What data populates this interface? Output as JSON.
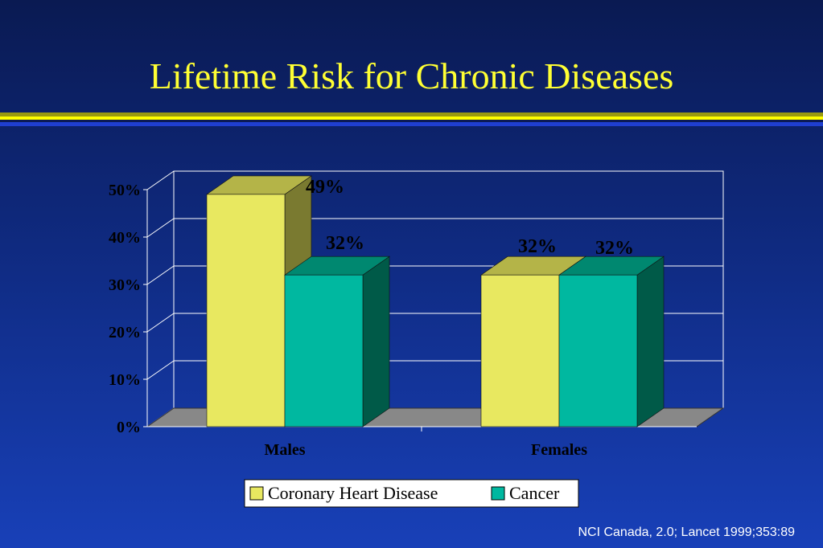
{
  "slide": {
    "title": "Lifetime Risk for Chronic Diseases",
    "citation": "NCI Canada, 2.0; Lancet 1999;353:89"
  },
  "colors": {
    "background": "#12308f",
    "title": "#ffff33",
    "chd_front": "#e8e860",
    "chd_side": "#7a7a30",
    "chd_top": "#b4b448",
    "cancer_front": "#00b8a0",
    "cancer_side": "#005a48",
    "cancer_top": "#008870",
    "floor": "#888888",
    "text": "#000000"
  },
  "chart_data": {
    "type": "bar",
    "style": "3d-clustered",
    "categories": [
      "Males",
      "Females"
    ],
    "series": [
      {
        "name": "Coronary Heart Disease",
        "values": [
          49,
          32
        ],
        "labels": [
          "49%",
          "32%"
        ]
      },
      {
        "name": "Cancer",
        "values": [
          32,
          32
        ],
        "labels": [
          "32%",
          "32%"
        ]
      }
    ],
    "yticks": [
      "0%",
      "10%",
      "20%",
      "30%",
      "40%",
      "50%"
    ],
    "ylim": [
      0,
      50
    ],
    "grid": true,
    "legend_position": "bottom"
  }
}
